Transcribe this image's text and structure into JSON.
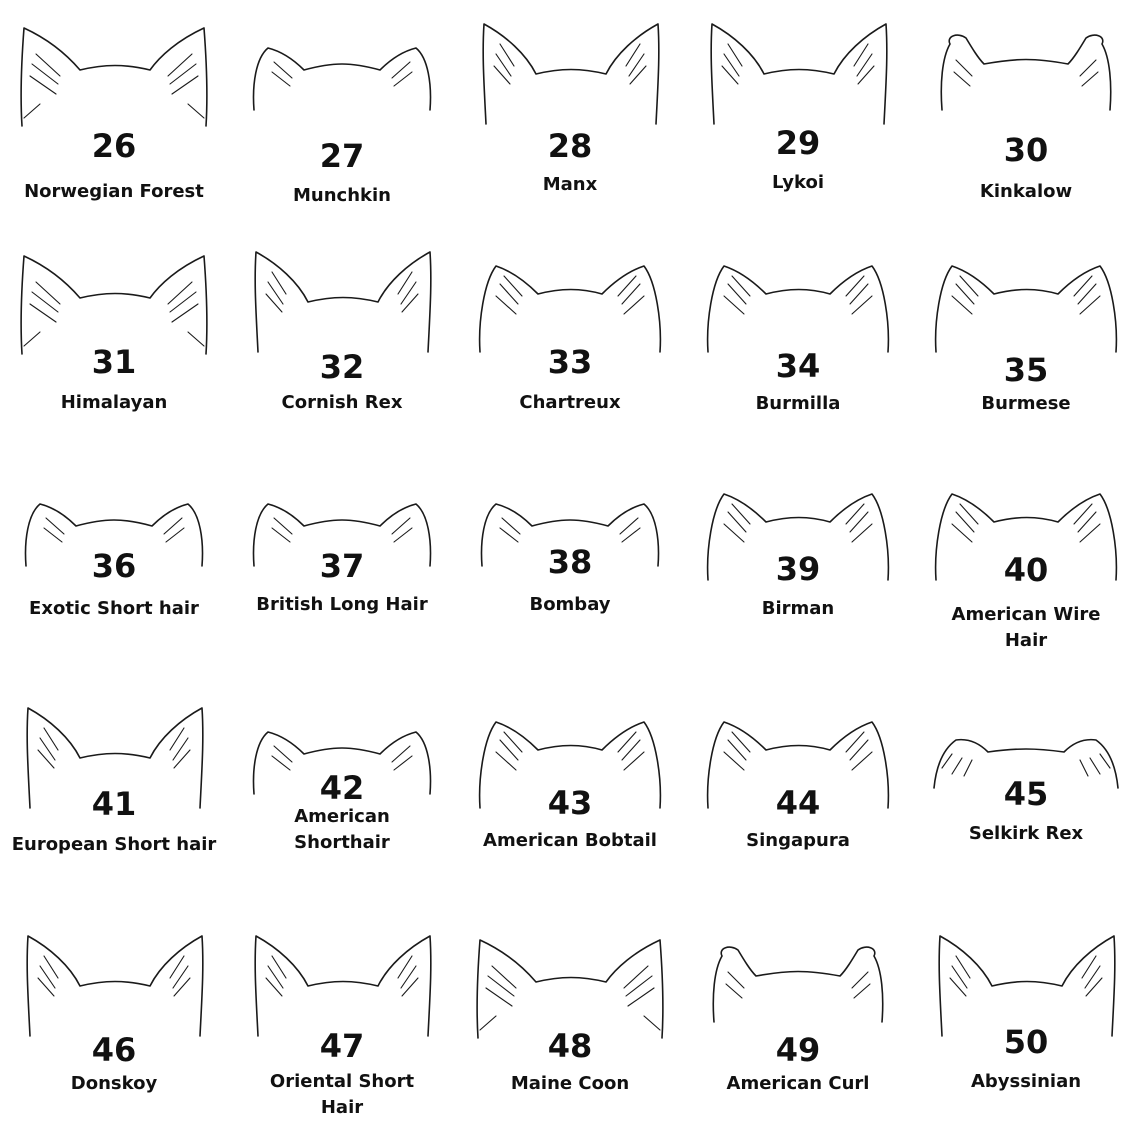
{
  "breeds": [
    {
      "number": "26",
      "name": "Norwegian Forest"
    },
    {
      "number": "27",
      "name": "Munchkin"
    },
    {
      "number": "28",
      "name": "Manx"
    },
    {
      "number": "29",
      "name": "Lykoi"
    },
    {
      "number": "30",
      "name": "Kinkalow"
    },
    {
      "number": "31",
      "name": "Himalayan"
    },
    {
      "number": "32",
      "name": "Cornish Rex"
    },
    {
      "number": "33",
      "name": "Chartreux"
    },
    {
      "number": "34",
      "name": "Burmilla"
    },
    {
      "number": "35",
      "name": "Burmese"
    },
    {
      "number": "36",
      "name": "Exotic Short hair"
    },
    {
      "number": "37",
      "name": "British Long Hair"
    },
    {
      "number": "38",
      "name": "Bombay"
    },
    {
      "number": "39",
      "name": "Birman"
    },
    {
      "number": "40",
      "name": "American Wire\nHair"
    },
    {
      "number": "41",
      "name": "European Short hair"
    },
    {
      "number": "42",
      "name": "American\nShorthair"
    },
    {
      "number": "43",
      "name": "American Bobtail"
    },
    {
      "number": "44",
      "name": "Singapura"
    },
    {
      "number": "45",
      "name": "Selkirk Rex"
    },
    {
      "number": "46",
      "name": "Donskoy"
    },
    {
      "number": "47",
      "name": "Oriental Short\nHair"
    },
    {
      "number": "48",
      "name": "Maine Coon"
    },
    {
      "number": "49",
      "name": "American Curl"
    },
    {
      "number": "50",
      "name": "Abyssinian"
    }
  ],
  "ear_shapes": [
    "tufted-pointed",
    "small-rounded",
    "tall-pointed",
    "tall-pointed",
    "curled-back",
    "tufted-pointed",
    "tall-pointed",
    "medium-rounded",
    "medium-rounded",
    "medium-rounded",
    "small-rounded",
    "small-rounded",
    "small-rounded",
    "medium-rounded",
    "medium-rounded",
    "tall-pointed",
    "small-rounded",
    "medium-rounded",
    "medium-rounded",
    "folded",
    "tall-pointed",
    "tall-pointed",
    "tufted-pointed",
    "curled-back",
    "tall-pointed"
  ]
}
